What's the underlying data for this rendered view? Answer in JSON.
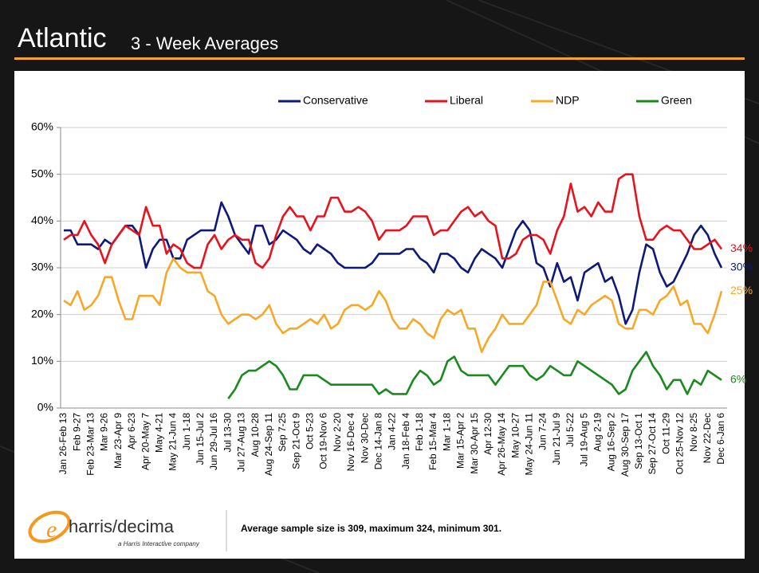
{
  "chart_data": {
    "type": "line",
    "title": "Atlantic",
    "subtitle": "3 - Week Averages",
    "categories": [
      "Jan 26-Feb 13",
      null,
      "Feb 9-27",
      null,
      "Feb 23-Mar 13",
      null,
      "Mar 9-26",
      null,
      "Mar 23-Apr 9",
      null,
      "Apr 6-23",
      null,
      "Apr 20-May 7",
      null,
      "May 4-21",
      null,
      "May 21-Jun 4",
      null,
      "Jun 1-18",
      null,
      "Jun 15-Jul 2",
      null,
      "Jun 29-Jul 16",
      null,
      "Jul 13-30",
      null,
      "Jul 27-Aug 13",
      null,
      "Aug 10-28",
      null,
      "Aug 24-Sep 11",
      null,
      "Sep 7-25",
      null,
      "Sep 21-Oct 9",
      null,
      "Oct 5-23",
      null,
      "Oct 19-Nov 6",
      null,
      "Nov 2-20",
      null,
      "Nov 16-Dec 4",
      null,
      "Nov 30-Dec",
      null,
      "Dec 14-Jan 8",
      null,
      "Jan 4-22",
      null,
      "Jan 18-Feb 4",
      null,
      "Feb 1-18",
      null,
      "Feb 15-Mar 4",
      null,
      "Mar 1-18",
      null,
      "Mar 15-Apr 2",
      null,
      "Mar 30-Apr 15",
      null,
      "Apr 12-30",
      null,
      "Apr 26-May 14",
      null,
      "May 10-27",
      null,
      "May 24-Jun 11",
      null,
      "Jun 7-24",
      null,
      "Jun 21-Jul 9",
      null,
      "Jul 5-22",
      null,
      "Jul 19-Aug 5",
      null,
      "Aug 2-19",
      null,
      "Aug 16-Sep 2",
      null,
      "Aug 30-Sep 17",
      null,
      "Sep 13-Oct 1",
      null,
      "Sep 27-Oct 14",
      null,
      "Oct 11-29",
      null,
      "Oct 25-Nov 12",
      null,
      "Nov 8-25",
      null,
      "Nov 22-Dec",
      null,
      "Dec 6-Jan 6"
    ],
    "series": [
      {
        "name": "Conservative",
        "color": "#0f1a78",
        "values": [
          38,
          38,
          35,
          35,
          35,
          34,
          36,
          35,
          37,
          39,
          39,
          37,
          30,
          34,
          36,
          36,
          32,
          32,
          36,
          37,
          38,
          38,
          38,
          44,
          41,
          37,
          35,
          33,
          39,
          39,
          35,
          36,
          38,
          37,
          36,
          34,
          33,
          35,
          34,
          33,
          31,
          30,
          30,
          30,
          30,
          31,
          33,
          33,
          33,
          33,
          34,
          34,
          32,
          31,
          29,
          33,
          33,
          32,
          30,
          29,
          32,
          34,
          33,
          32,
          30,
          34,
          38,
          40,
          38,
          31,
          30,
          26,
          31,
          27,
          28,
          23,
          29,
          30,
          31,
          27,
          28,
          24,
          18,
          21,
          29,
          35,
          34,
          29,
          26,
          27,
          30,
          33,
          37,
          39,
          37,
          33,
          30
        ],
        "value_labels": [
          null,
          null,
          null,
          null,
          null,
          null,
          null,
          null,
          null,
          null,
          null,
          null,
          null,
          null,
          null,
          null,
          null,
          null,
          null,
          null,
          null,
          null,
          null,
          null,
          null,
          null,
          null,
          null,
          null,
          null,
          null,
          null,
          null,
          null,
          null,
          null,
          null,
          null,
          null,
          null,
          null,
          null,
          null,
          null,
          null,
          null,
          null,
          null,
          null,
          null,
          null,
          null,
          null,
          null,
          null,
          null,
          null,
          null,
          null,
          null,
          null,
          null,
          null,
          null,
          null,
          null,
          null,
          null,
          null,
          null,
          null,
          null,
          null,
          null,
          null,
          null,
          null,
          null,
          null,
          null,
          null,
          null,
          null,
          null,
          null,
          null,
          null,
          null,
          null,
          null,
          null,
          null,
          null,
          null,
          null,
          null,
          "30%"
        ]
      },
      {
        "name": "Liberal",
        "color": "#e8121c",
        "values": [
          36,
          37,
          37,
          40,
          37,
          35,
          31,
          35,
          37,
          39,
          38,
          37,
          43,
          39,
          39,
          33,
          35,
          34,
          31,
          30,
          30,
          35,
          37,
          34,
          36,
          37,
          36,
          36,
          31,
          30,
          32,
          37,
          41,
          43,
          41,
          41,
          38,
          41,
          41,
          45,
          45,
          42,
          42,
          43,
          42,
          40,
          36,
          38,
          38,
          38,
          39,
          41,
          41,
          41,
          37,
          38,
          38,
          40,
          42,
          43,
          41,
          42,
          40,
          39,
          32,
          32,
          33,
          36,
          37,
          37,
          36,
          33,
          38,
          41,
          48,
          42,
          43,
          41,
          44,
          42,
          42,
          49,
          50,
          50,
          41,
          36,
          36,
          38,
          39,
          38,
          38,
          36,
          34,
          34,
          35,
          36,
          34
        ],
        "value_labels": [
          null,
          null,
          null,
          null,
          null,
          null,
          null,
          null,
          null,
          null,
          null,
          null,
          null,
          null,
          null,
          null,
          null,
          null,
          null,
          null,
          null,
          null,
          null,
          null,
          null,
          null,
          null,
          null,
          null,
          null,
          null,
          null,
          null,
          null,
          null,
          null,
          null,
          null,
          null,
          null,
          null,
          null,
          null,
          null,
          null,
          null,
          null,
          null,
          null,
          null,
          null,
          null,
          null,
          null,
          null,
          null,
          null,
          null,
          null,
          null,
          null,
          null,
          null,
          null,
          null,
          null,
          null,
          null,
          null,
          null,
          null,
          null,
          null,
          null,
          null,
          null,
          null,
          null,
          null,
          null,
          null,
          null,
          null,
          null,
          null,
          null,
          null,
          null,
          null,
          null,
          null,
          null,
          null,
          null,
          null,
          null,
          "34%"
        ]
      },
      {
        "name": "NDP",
        "color": "#f6a828",
        "values": [
          23,
          22,
          25,
          21,
          22,
          24,
          28,
          28,
          23,
          19,
          19,
          24,
          24,
          24,
          22,
          29,
          32,
          30,
          29,
          29,
          29,
          25,
          24,
          20,
          18,
          19,
          20,
          20,
          19,
          20,
          22,
          18,
          16,
          17,
          17,
          18,
          19,
          18,
          20,
          17,
          18,
          21,
          22,
          22,
          21,
          22,
          25,
          23,
          19,
          17,
          17,
          19,
          18,
          16,
          15,
          19,
          21,
          20,
          21,
          17,
          17,
          12,
          15,
          17,
          20,
          18,
          18,
          18,
          20,
          22,
          27,
          27,
          23,
          19,
          18,
          21,
          20,
          22,
          23,
          24,
          23,
          18,
          17,
          17,
          21,
          21,
          20,
          23,
          24,
          26,
          22,
          23,
          18,
          18,
          16,
          20,
          25
        ],
        "value_labels": [
          null,
          null,
          null,
          null,
          null,
          null,
          null,
          null,
          null,
          null,
          null,
          null,
          null,
          null,
          null,
          null,
          null,
          null,
          null,
          null,
          null,
          null,
          null,
          null,
          null,
          null,
          null,
          null,
          null,
          null,
          null,
          null,
          null,
          null,
          null,
          null,
          null,
          null,
          null,
          null,
          null,
          null,
          null,
          null,
          null,
          null,
          null,
          null,
          null,
          null,
          null,
          null,
          null,
          null,
          null,
          null,
          null,
          null,
          null,
          null,
          null,
          null,
          null,
          null,
          null,
          null,
          null,
          null,
          null,
          null,
          null,
          null,
          null,
          null,
          null,
          null,
          null,
          null,
          null,
          null,
          null,
          null,
          null,
          null,
          null,
          null,
          null,
          null,
          null,
          null,
          null,
          null,
          null,
          null,
          null,
          null,
          "25%"
        ]
      },
      {
        "name": "Green",
        "color": "#1a8a1f",
        "values": [
          null,
          null,
          null,
          null,
          null,
          null,
          null,
          null,
          null,
          null,
          null,
          null,
          null,
          null,
          null,
          null,
          null,
          null,
          null,
          null,
          null,
          null,
          null,
          null,
          2,
          4,
          7,
          8,
          8,
          9,
          10,
          9,
          7,
          4,
          4,
          7,
          7,
          7,
          6,
          5,
          5,
          5,
          5,
          5,
          5,
          5,
          3,
          4,
          3,
          3,
          3,
          6,
          8,
          7,
          5,
          6,
          10,
          11,
          8,
          7,
          7,
          7,
          7,
          5,
          7,
          9,
          9,
          9,
          7,
          6,
          7,
          9,
          8,
          7,
          7,
          10,
          9,
          8,
          7,
          6,
          5,
          3,
          4,
          8,
          10,
          12,
          9,
          7,
          4,
          6,
          6,
          3,
          6,
          5,
          8,
          7,
          6
        ],
        "value_labels": [
          null,
          null,
          null,
          null,
          null,
          null,
          null,
          null,
          null,
          null,
          null,
          null,
          null,
          null,
          null,
          null,
          null,
          null,
          null,
          null,
          null,
          null,
          null,
          null,
          null,
          null,
          null,
          null,
          null,
          null,
          null,
          null,
          null,
          null,
          null,
          null,
          null,
          null,
          null,
          null,
          null,
          null,
          null,
          null,
          null,
          null,
          null,
          null,
          null,
          null,
          null,
          null,
          null,
          null,
          null,
          null,
          null,
          null,
          null,
          null,
          null,
          null,
          null,
          null,
          null,
          null,
          null,
          null,
          null,
          null,
          null,
          null,
          null,
          null,
          null,
          null,
          null,
          null,
          null,
          null,
          null,
          null,
          null,
          null,
          null,
          null,
          null,
          null,
          null,
          null,
          null,
          null,
          null,
          null,
          null,
          null,
          "6%"
        ]
      }
    ],
    "ylim": [
      0,
      60
    ],
    "yticks": [
      {
        "value": 0,
        "label": "0%"
      },
      {
        "value": 10,
        "label": "10%"
      },
      {
        "value": 20,
        "label": "20%"
      },
      {
        "value": 30,
        "label": "30%"
      },
      {
        "value": 40,
        "label": "40%"
      },
      {
        "value": 50,
        "label": "50%"
      },
      {
        "value": 60,
        "label": "60%"
      }
    ],
    "grid": true,
    "legend": "top"
  },
  "footer": {
    "logo": "harris/decima",
    "tagline": "a Harris Interactive company",
    "note": "Average sample size is 309, maximum 324, minimum 301."
  }
}
